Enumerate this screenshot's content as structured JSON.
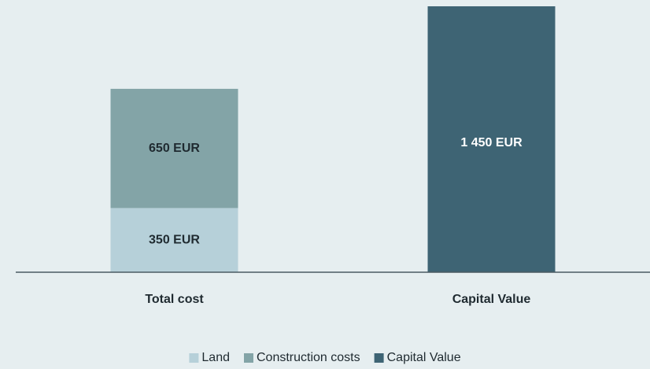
{
  "chart_data": {
    "type": "stacked_bar",
    "categories": [
      "Total cost",
      "Capital Value"
    ],
    "series": [
      {
        "name": "Land",
        "color": "#b6d0d9",
        "values": [
          350,
          null
        ],
        "value_labels": [
          "350 EUR",
          null
        ]
      },
      {
        "name": "Construction costs",
        "color": "#83a4a7",
        "values": [
          650,
          null
        ],
        "value_labels": [
          "650 EUR",
          null
        ]
      },
      {
        "name": "Capital Value",
        "color": "#3e6474",
        "values": [
          null,
          1450
        ],
        "value_labels": [
          null,
          "1 450 EUR"
        ]
      }
    ],
    "ylim": [
      0,
      1450
    ],
    "legend": "bottom"
  }
}
